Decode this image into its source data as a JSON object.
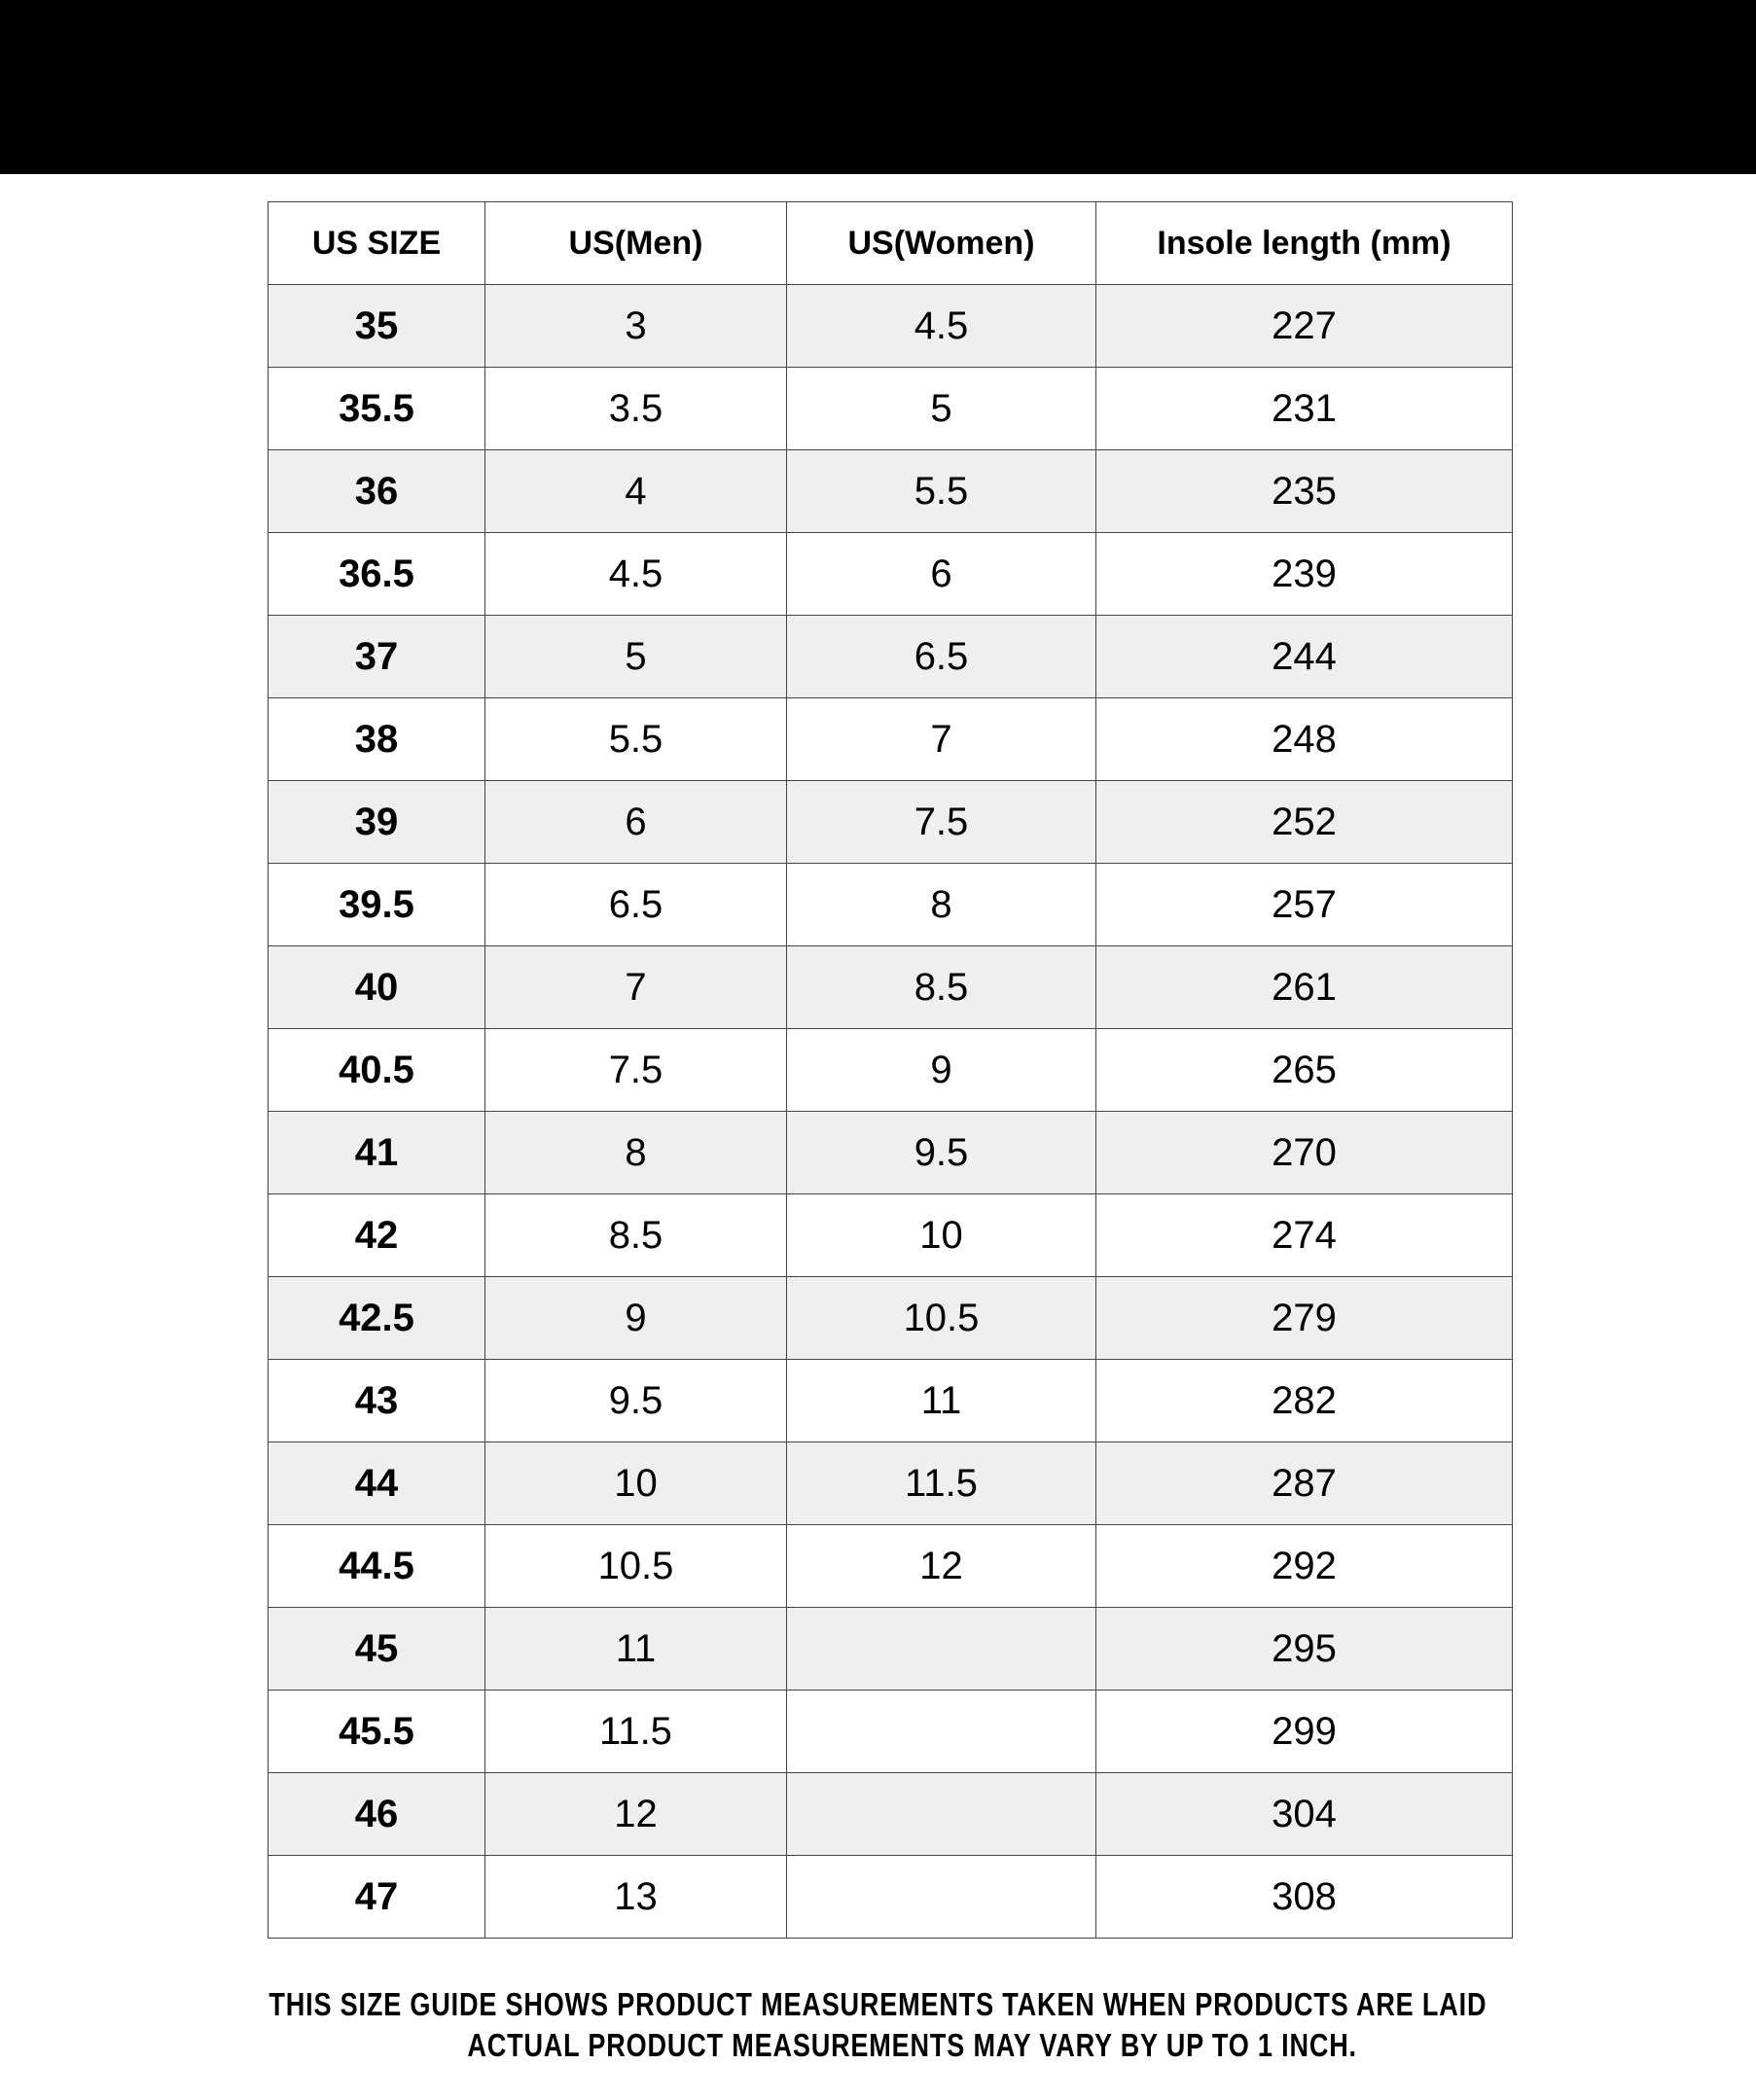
{
  "table": {
    "headers": [
      "US SIZE",
      "US(Men)",
      "US(Women)",
      "Insole length (mm)"
    ],
    "rows": [
      [
        "35",
        "3",
        "4.5",
        "227"
      ],
      [
        "35.5",
        "3.5",
        "5",
        "231"
      ],
      [
        "36",
        "4",
        "5.5",
        "235"
      ],
      [
        "36.5",
        "4.5",
        "6",
        "239"
      ],
      [
        "37",
        "5",
        "6.5",
        "244"
      ],
      [
        "38",
        "5.5",
        "7",
        "248"
      ],
      [
        "39",
        "6",
        "7.5",
        "252"
      ],
      [
        "39.5",
        "6.5",
        "8",
        "257"
      ],
      [
        "40",
        "7",
        "8.5",
        "261"
      ],
      [
        "40.5",
        "7.5",
        "9",
        "265"
      ],
      [
        "41",
        "8",
        "9.5",
        "270"
      ],
      [
        "42",
        "8.5",
        "10",
        "274"
      ],
      [
        "42.5",
        "9",
        "10.5",
        "279"
      ],
      [
        "43",
        "9.5",
        "11",
        "282"
      ],
      [
        "44",
        "10",
        "11.5",
        "287"
      ],
      [
        "44.5",
        "10.5",
        "12",
        "292"
      ],
      [
        "45",
        "11",
        "",
        "295"
      ],
      [
        "45.5",
        "11.5",
        "",
        "299"
      ],
      [
        "46",
        "12",
        "",
        "304"
      ],
      [
        "47",
        "13",
        "",
        "308"
      ]
    ]
  },
  "footer": {
    "line1": "THIS SIZE GUIDE SHOWS PRODUCT MEASUREMENTS TAKEN WHEN PRODUCTS ARE LAID",
    "line2": "ACTUAL PRODUCT MEASUREMENTS MAY VARY BY UP TO 1 INCH."
  },
  "colors": {
    "stripe": "#efefef",
    "topbar": "#000000"
  }
}
